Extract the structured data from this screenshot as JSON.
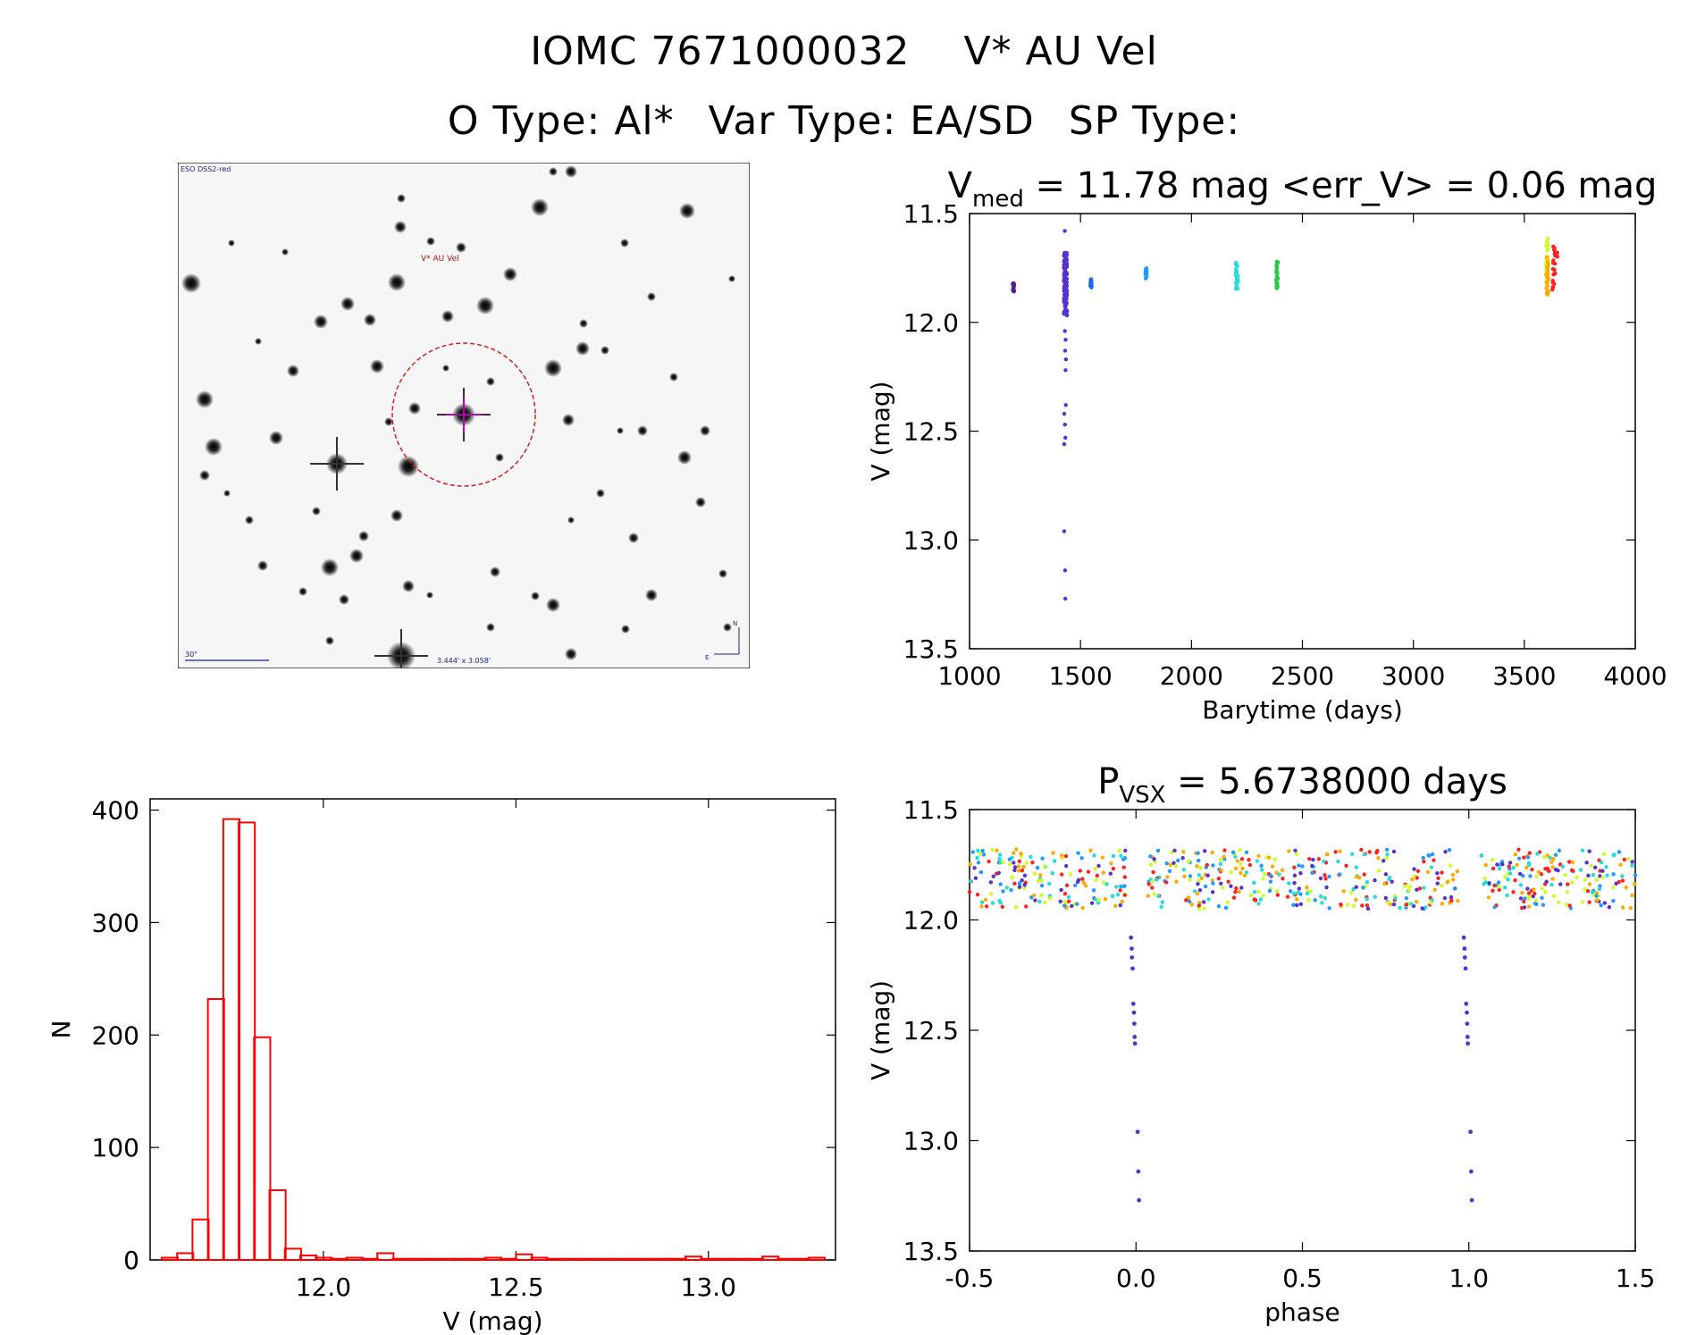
{
  "header": {
    "line1": {
      "id": "IOMC 7671000032",
      "name": "V* AU Vel"
    },
    "line2": {
      "otype": "O Type: Al*",
      "vartype": "Var Type: EA/SD",
      "sptype": "SP Type:"
    }
  },
  "image_panel": {
    "survey": "ESO DSS2-red",
    "target_label": "V* AU Vel",
    "scale_label": "30\"",
    "fov_label": "3.444' x 3.058'",
    "north": "N",
    "east": "E"
  },
  "colors": {
    "frame": "#000000",
    "hist": "#ff0000",
    "circle": "#cc2222",
    "marker": "#cc00cc"
  },
  "chart_data": [
    {
      "id": "light_curve",
      "type": "scatter",
      "title_symbol": "V",
      "title_sub": "med",
      "title_rest": " = 11.78 mag <err_V> = 0.06 mag",
      "xlabel": "Barytime (days)",
      "ylabel": "V (mag)",
      "xlim": [
        1000,
        4000
      ],
      "ylim": [
        13.5,
        11.5
      ],
      "xticks": [
        1000,
        1500,
        2000,
        2500,
        3000,
        3500,
        4000
      ],
      "yticks": [
        11.5,
        12.0,
        12.5,
        13.0,
        13.5
      ],
      "series": [
        {
          "name": "s1",
          "color": "#5a189a",
          "x_range": [
            1195,
            1200
          ],
          "y_range": [
            11.82,
            11.86
          ]
        },
        {
          "name": "s2",
          "color": "#5533cc",
          "x_range": [
            1425,
            1440
          ],
          "y_range": [
            11.68,
            11.97
          ],
          "dips": [
            11.58,
            12.04,
            12.08,
            12.13,
            12.17,
            12.22,
            12.38,
            12.42,
            12.47,
            12.53,
            12.56,
            12.96,
            13.14,
            13.27
          ]
        },
        {
          "name": "s3",
          "color": "#2266ee",
          "x_range": [
            1545,
            1550
          ],
          "y_range": [
            11.8,
            11.84
          ]
        },
        {
          "name": "s4",
          "color": "#2299ff",
          "x_range": [
            1792,
            1798
          ],
          "y_range": [
            11.75,
            11.8
          ]
        },
        {
          "name": "s5",
          "color": "#22dddd",
          "x_range": [
            2200,
            2210
          ],
          "y_range": [
            11.72,
            11.85
          ]
        },
        {
          "name": "s6",
          "color": "#22cc44",
          "x_range": [
            2382,
            2390
          ],
          "y_range": [
            11.69,
            11.85
          ]
        },
        {
          "name": "s7",
          "color": "#ccff22",
          "x_range": [
            3598,
            3606
          ],
          "y_range": [
            11.6,
            11.78
          ]
        },
        {
          "name": "s8",
          "color": "#ffaa00",
          "x_range": [
            3598,
            3608
          ],
          "y_range": [
            11.7,
            11.88
          ]
        },
        {
          "name": "s9",
          "color": "#ff2222",
          "x_range": [
            3625,
            3650
          ],
          "y_range": [
            11.65,
            11.87
          ]
        }
      ]
    },
    {
      "id": "histogram",
      "type": "bar",
      "xlabel": "V (mag)",
      "ylabel": "N",
      "xlim": [
        11.55,
        13.33
      ],
      "ylim": [
        0,
        410
      ],
      "xticks": [
        12.0,
        12.5,
        13.0
      ],
      "yticks": [
        0,
        100,
        200,
        300,
        400
      ],
      "bin_width": 0.042,
      "bins_start": [
        11.58,
        11.62,
        11.66,
        11.7,
        11.74,
        11.78,
        11.82,
        11.86,
        11.9,
        11.94,
        11.98,
        12.02,
        12.06,
        12.1,
        12.14,
        12.18,
        12.22,
        12.26,
        12.3,
        12.34,
        12.38,
        12.42,
        12.46,
        12.5,
        12.54,
        12.58,
        12.62,
        12.66,
        12.7,
        12.74,
        12.78,
        12.82,
        12.86,
        12.9,
        12.94,
        12.98,
        13.02,
        13.06,
        13.1,
        13.14,
        13.18,
        13.22,
        13.26
      ],
      "values": [
        2,
        6,
        36,
        232,
        392,
        389,
        198,
        62,
        10,
        4,
        2,
        1,
        2,
        1,
        6,
        1,
        1,
        1,
        1,
        1,
        1,
        2,
        1,
        5,
        2,
        1,
        1,
        1,
        1,
        1,
        1,
        1,
        1,
        1,
        3,
        1,
        1,
        1,
        1,
        3,
        1,
        1,
        2
      ]
    },
    {
      "id": "phased",
      "type": "scatter",
      "title_symbol": "P",
      "title_sub": "VSX",
      "title_rest": " = 5.6738000 days",
      "xlabel": "phase",
      "ylabel": "V (mag)",
      "xlim": [
        -0.5,
        1.5
      ],
      "ylim": [
        13.5,
        11.5
      ],
      "xticks": [
        -0.5,
        0.0,
        0.5,
        1.0,
        1.5
      ],
      "yticks": [
        11.5,
        12.0,
        12.5,
        13.0,
        13.5
      ],
      "period_days": 5.6738,
      "eclipse_points": [
        {
          "phase": -0.015,
          "mag": 12.08
        },
        {
          "phase": -0.013,
          "mag": 12.13
        },
        {
          "phase": -0.012,
          "mag": 12.17
        },
        {
          "phase": -0.01,
          "mag": 12.22
        },
        {
          "phase": -0.008,
          "mag": 12.38
        },
        {
          "phase": -0.006,
          "mag": 12.42
        },
        {
          "phase": -0.005,
          "mag": 12.47
        },
        {
          "phase": -0.004,
          "mag": 12.53
        },
        {
          "phase": -0.003,
          "mag": 12.56
        },
        {
          "phase": 0.005,
          "mag": 12.96
        },
        {
          "phase": 0.007,
          "mag": 13.14
        },
        {
          "phase": 0.009,
          "mag": 13.27
        }
      ],
      "baseline": {
        "mag_range": [
          11.68,
          11.95
        ],
        "colors": [
          "#5533cc",
          "#ffaa00",
          "#ff2222",
          "#ccff22",
          "#22dddd",
          "#2299ff"
        ]
      }
    }
  ]
}
